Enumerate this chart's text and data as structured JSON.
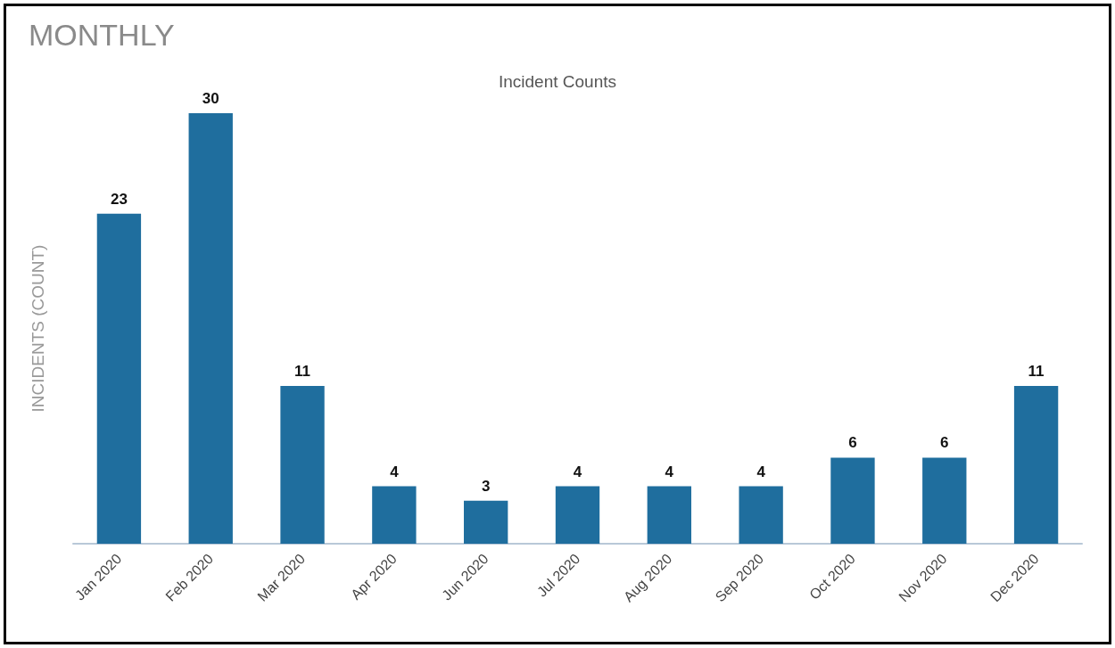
{
  "chart_data": {
    "type": "bar",
    "title": "MONTHLY",
    "subtitle": "Incident Counts",
    "ylabel": "INCIDENTS (COUNT)",
    "categories": [
      "Jan 2020",
      "Feb 2020",
      "Mar 2020",
      "Apr 2020",
      "Jun 2020",
      "Jul 2020",
      "Aug 2020",
      "Sep 2020",
      "Oct 2020",
      "Nov 2020",
      "Dec 2020"
    ],
    "values": [
      23,
      30,
      11,
      4,
      3,
      4,
      4,
      4,
      6,
      6,
      11
    ],
    "color": "#1f6e9e",
    "data_labels": true,
    "grid": false
  }
}
